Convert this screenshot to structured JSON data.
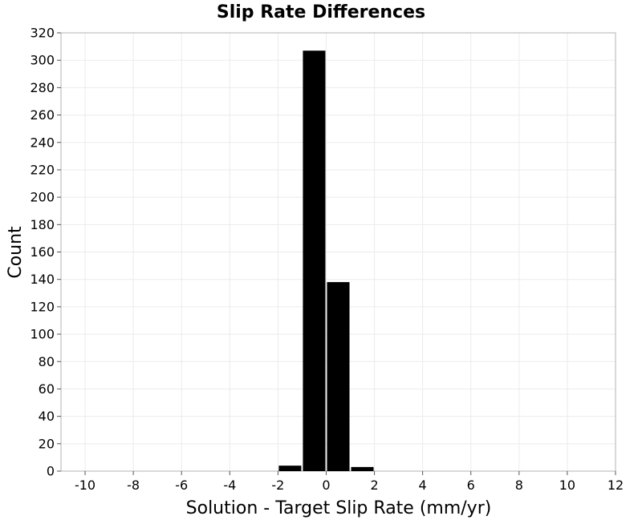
{
  "chart_data": {
    "type": "bar",
    "title": "Slip Rate Differences",
    "xlabel": "Solution - Target Slip Rate (mm/yr)",
    "ylabel": "Count",
    "xlim": [
      -11,
      12
    ],
    "ylim": [
      0,
      320
    ],
    "xticks": [
      -10,
      -8,
      -6,
      -4,
      -2,
      0,
      2,
      4,
      6,
      8,
      10,
      12
    ],
    "yticks": [
      0,
      20,
      40,
      60,
      80,
      100,
      120,
      140,
      160,
      180,
      200,
      220,
      240,
      260,
      280,
      300,
      320
    ],
    "bin_width": 1,
    "bins": [
      {
        "x": -11,
        "value": 0
      },
      {
        "x": -10,
        "value": 0
      },
      {
        "x": -9,
        "value": 0
      },
      {
        "x": -8,
        "value": 0
      },
      {
        "x": -7,
        "value": 0
      },
      {
        "x": -6,
        "value": 0
      },
      {
        "x": -5,
        "value": 0
      },
      {
        "x": -4,
        "value": 0
      },
      {
        "x": -3,
        "value": 0
      },
      {
        "x": -2,
        "value": 0
      },
      {
        "x": -1.5,
        "value": 4
      },
      {
        "x": -0.5,
        "value": 307
      },
      {
        "x": 0.5,
        "value": 138
      },
      {
        "x": 1.5,
        "value": 3
      }
    ],
    "bar_color": "#000000",
    "grid": true,
    "grid_color": "#ebebeb",
    "legend": "none"
  }
}
